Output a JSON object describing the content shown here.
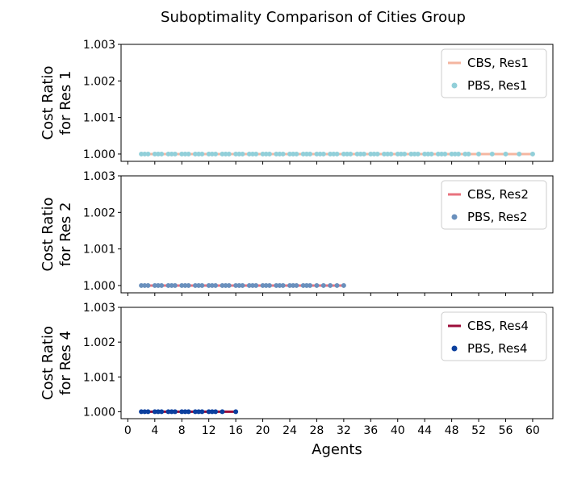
{
  "figure": {
    "title": "Suboptimality Comparison of Cities Group"
  },
  "chart_data": [
    {
      "type": "line",
      "title": "",
      "xlabel": "",
      "ylabel_line1": "Cost Ratio",
      "ylabel_line2": "for Res 1",
      "ylim": [
        0.9998,
        1.003
      ],
      "yticks": [
        1.0,
        1.001,
        1.002,
        1.003
      ],
      "ytick_labels": [
        "1.000",
        "1.001",
        "1.002",
        "1.003"
      ],
      "legend_placement": "top-right",
      "series": [
        {
          "name": "CBS, Res1",
          "style": "line",
          "color": "#f4b6a0",
          "x": [
            2,
            60
          ],
          "y": [
            1.0,
            1.0
          ]
        },
        {
          "name": "PBS, Res1",
          "style": "points",
          "color": "#91cfd9",
          "x": [
            2,
            2.5,
            3,
            4,
            4.5,
            5,
            6,
            6.5,
            7,
            8,
            8.5,
            9,
            10,
            10.5,
            11,
            12,
            12.5,
            13,
            14,
            14.5,
            15,
            16,
            16.5,
            17,
            18,
            18.5,
            19,
            20,
            20.5,
            21,
            22,
            22.5,
            23,
            24,
            24.5,
            25,
            26,
            26.5,
            27,
            28,
            28.5,
            29,
            30,
            30.5,
            31,
            32,
            32.5,
            33,
            34,
            34.5,
            35,
            36,
            36.5,
            37,
            38,
            38.5,
            39,
            40,
            40.5,
            41,
            42,
            42.5,
            43,
            44,
            44.5,
            45,
            46,
            46.5,
            47,
            48,
            48.5,
            49,
            50,
            50.5,
            52,
            54,
            56,
            58,
            60
          ],
          "y": [
            1,
            1,
            1,
            1,
            1,
            1,
            1,
            1,
            1,
            1,
            1,
            1,
            1,
            1,
            1,
            1,
            1,
            1,
            1,
            1,
            1,
            1,
            1,
            1,
            1,
            1,
            1,
            1,
            1,
            1,
            1,
            1,
            1,
            1,
            1,
            1,
            1,
            1,
            1,
            1,
            1,
            1,
            1,
            1,
            1,
            1,
            1,
            1,
            1,
            1,
            1,
            1,
            1,
            1,
            1,
            1,
            1,
            1,
            1,
            1,
            1,
            1,
            1,
            1,
            1,
            1,
            1,
            1,
            1,
            1,
            1,
            1,
            1,
            1,
            1,
            1,
            1,
            1,
            1
          ]
        }
      ]
    },
    {
      "type": "line",
      "title": "",
      "xlabel": "",
      "ylabel_line1": "Cost Ratio",
      "ylabel_line2": "for Res 2",
      "ylim": [
        0.9998,
        1.003
      ],
      "yticks": [
        1.0,
        1.001,
        1.002,
        1.003
      ],
      "ytick_labels": [
        "1.000",
        "1.001",
        "1.002",
        "1.003"
      ],
      "legend_placement": "top-right",
      "series": [
        {
          "name": "CBS, Res2",
          "style": "line",
          "color": "#e8727e",
          "x": [
            2,
            32
          ],
          "y": [
            1.0,
            1.0
          ]
        },
        {
          "name": "PBS, Res2",
          "style": "points",
          "color": "#6a90bd",
          "x": [
            2,
            2.5,
            3,
            4,
            4.5,
            5,
            6,
            6.5,
            7,
            8,
            8.5,
            9,
            10,
            10.5,
            11,
            12,
            12.5,
            13,
            14,
            14.5,
            15,
            16,
            16.5,
            17,
            18,
            18.5,
            19,
            20,
            20.5,
            21,
            22,
            22.5,
            23,
            24,
            24.5,
            25,
            26,
            26.5,
            27,
            28,
            29,
            30,
            31,
            32
          ],
          "y": [
            1,
            1,
            1,
            1,
            1,
            1,
            1,
            1,
            1,
            1,
            1,
            1,
            1,
            1,
            1,
            1,
            1,
            1,
            1,
            1,
            1,
            1,
            1,
            1,
            1,
            1,
            1,
            1,
            1,
            1,
            1,
            1,
            1,
            1,
            1,
            1,
            1,
            1,
            1,
            1,
            1,
            1,
            1,
            1
          ]
        }
      ]
    },
    {
      "type": "line",
      "title": "",
      "xlabel": "Agents",
      "ylabel_line1": "Cost Ratio",
      "ylabel_line2": "for Res 4",
      "ylim": [
        0.9998,
        1.003
      ],
      "yticks": [
        1.0,
        1.001,
        1.002,
        1.003
      ],
      "ytick_labels": [
        "1.000",
        "1.001",
        "1.002",
        "1.003"
      ],
      "xlim": [
        -1,
        63
      ],
      "xticks": [
        0,
        4,
        8,
        12,
        16,
        20,
        24,
        28,
        32,
        36,
        40,
        44,
        48,
        52,
        56,
        60
      ],
      "xtick_labels": [
        "0",
        "4",
        "8",
        "12",
        "16",
        "20",
        "24",
        "28",
        "32",
        "36",
        "40",
        "44",
        "48",
        "52",
        "56",
        "60"
      ],
      "legend_placement": "top-right",
      "series": [
        {
          "name": "CBS, Res4",
          "style": "line",
          "color": "#9c0d3a",
          "x": [
            2,
            16
          ],
          "y": [
            1.0,
            1.0
          ]
        },
        {
          "name": "PBS, Res4",
          "style": "points",
          "color": "#0b3f9e",
          "x": [
            2,
            2.5,
            3,
            4,
            4.5,
            5,
            6,
            6.5,
            7,
            8,
            8.5,
            9,
            10,
            10.5,
            11,
            12,
            12.5,
            13,
            14,
            16
          ],
          "y": [
            1,
            1,
            1,
            1,
            1,
            1,
            1,
            1,
            1,
            1,
            1,
            1,
            1,
            1,
            1,
            1,
            1,
            1,
            1,
            1
          ]
        }
      ]
    }
  ]
}
